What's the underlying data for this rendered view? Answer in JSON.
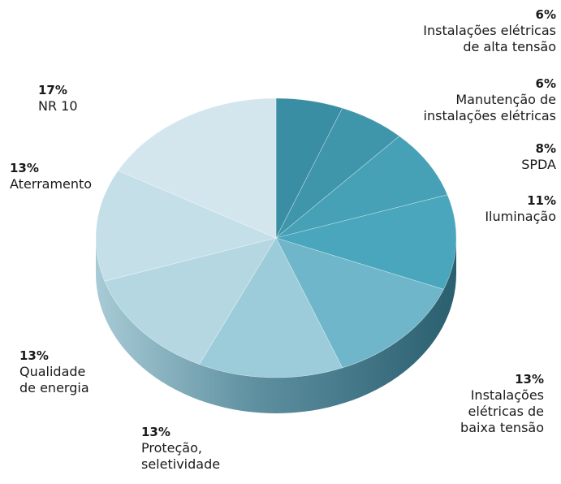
{
  "chart_data": {
    "type": "pie",
    "title": "",
    "slices": [
      {
        "label": "Instalações elétricas\nde alta tensão",
        "value": 6,
        "value_label": "6%",
        "color": "#3a8ea3"
      },
      {
        "label": "Manutenção de\ninstalações elétricas",
        "value": 6,
        "value_label": "6%",
        "color": "#3f96ab"
      },
      {
        "label": "SPDA",
        "value": 8,
        "value_label": "8%",
        "color": "#46a0b6"
      },
      {
        "label": "Iluminação",
        "value": 11,
        "value_label": "11%",
        "color": "#4aa6bd"
      },
      {
        "label": "Instalações\nelétricas de\nbaixa tensão",
        "value": 13,
        "value_label": "13%",
        "color": "#6fb6ca"
      },
      {
        "label": "Proteção,\nseletividade",
        "value": 13,
        "value_label": "13%",
        "color": "#9ccbd9"
      },
      {
        "label": "Qualidade\nde energia",
        "value": 13,
        "value_label": "13%",
        "color": "#b4d7e2"
      },
      {
        "label": "Aterramento",
        "value": 13,
        "value_label": "13%",
        "color": "#c5dfe9"
      },
      {
        "label": "NR 10",
        "value": 17,
        "value_label": "17%",
        "color": "#d3e6ee"
      }
    ],
    "legend": "labels around pie"
  }
}
